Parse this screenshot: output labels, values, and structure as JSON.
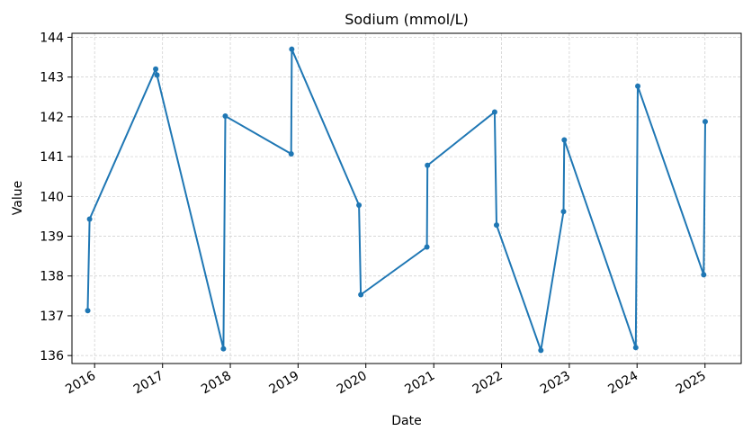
{
  "chart_data": {
    "type": "line",
    "title": "Sodium (mmol/L)",
    "xlabel": "Date",
    "ylabel": "Value",
    "ylim": [
      135.8,
      144.1
    ],
    "xlim": [
      "2015-09-01",
      "2025-07-15"
    ],
    "grid": true,
    "x_ticks": [
      "2016",
      "2017",
      "2018",
      "2019",
      "2020",
      "2021",
      "2022",
      "2023",
      "2024",
      "2025"
    ],
    "y_ticks": [
      136,
      137,
      138,
      139,
      140,
      141,
      142,
      143,
      144
    ],
    "color": "#1f77b4",
    "series": [
      {
        "points": [
          {
            "x": "2015-11-25",
            "y": 137.13
          },
          {
            "x": "2015-12-05",
            "y": 139.43
          },
          {
            "x": "2016-11-25",
            "y": 143.2
          },
          {
            "x": "2016-12-02",
            "y": 143.05
          },
          {
            "x": "2017-11-25",
            "y": 136.17
          },
          {
            "x": "2017-12-05",
            "y": 142.02
          },
          {
            "x": "2018-11-25",
            "y": 141.07
          },
          {
            "x": "2018-11-28",
            "y": 143.7
          },
          {
            "x": "2019-11-25",
            "y": 139.78
          },
          {
            "x": "2019-12-05",
            "y": 137.53
          },
          {
            "x": "2020-11-25",
            "y": 138.73
          },
          {
            "x": "2020-11-28",
            "y": 140.78
          },
          {
            "x": "2021-11-25",
            "y": 142.12
          },
          {
            "x": "2021-12-05",
            "y": 139.28
          },
          {
            "x": "2022-08-01",
            "y": 136.13
          },
          {
            "x": "2022-12-01",
            "y": 139.62
          },
          {
            "x": "2022-12-05",
            "y": 141.42
          },
          {
            "x": "2023-12-25",
            "y": 136.2
          },
          {
            "x": "2024-01-05",
            "y": 142.77
          },
          {
            "x": "2024-12-25",
            "y": 138.03
          },
          {
            "x": "2025-01-02",
            "y": 141.88
          }
        ]
      }
    ]
  }
}
